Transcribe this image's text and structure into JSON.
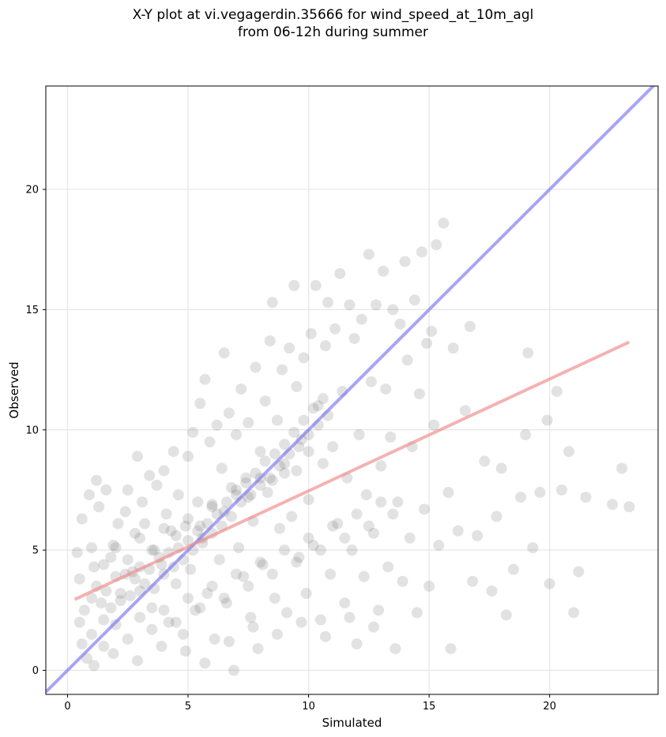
{
  "chart_data": {
    "type": "scatter",
    "title": "X-Y plot at vi.vegagerdin.35666 for wind_speed_at_10m_agl",
    "subtitle": "from 06-12h during summer",
    "xlabel": "Simulated",
    "ylabel": "Observed",
    "xlim": [
      -0.9,
      24.5
    ],
    "ylim": [
      -1.0,
      24.3
    ],
    "xticks": [
      0,
      5,
      10,
      15,
      20
    ],
    "yticks": [
      0,
      5,
      10,
      15,
      20
    ],
    "grid": true,
    "point_color": "#555555",
    "identity_line": {
      "color": "#7777ee",
      "points": [
        [
          -0.9,
          -0.9
        ],
        [
          24.5,
          24.5
        ]
      ]
    },
    "fit_line": {
      "color": "#ee8888",
      "points": [
        [
          0.3,
          2.95
        ],
        [
          23.3,
          13.65
        ]
      ]
    },
    "points": [
      [
        0.4,
        4.9
      ],
      [
        0.5,
        3.8
      ],
      [
        0.6,
        6.3
      ],
      [
        0.7,
        2.5
      ],
      [
        0.9,
        7.3
      ],
      [
        1.0,
        5.1
      ],
      [
        1.1,
        4.3
      ],
      [
        1.2,
        7.9
      ],
      [
        1.3,
        6.8
      ],
      [
        1.5,
        2.1
      ],
      [
        1.6,
        7.5
      ],
      [
        1.8,
        4.7
      ],
      [
        1.9,
        5.2
      ],
      [
        2.1,
        6.1
      ],
      [
        2.2,
        2.9
      ],
      [
        2.4,
        6.6
      ],
      [
        2.5,
        7.5
      ],
      [
        2.7,
        4.1
      ],
      [
        2.8,
        5.7
      ],
      [
        2.9,
        8.9
      ],
      [
        3.0,
        3.3
      ],
      [
        3.1,
        7.0
      ],
      [
        3.2,
        6.1
      ],
      [
        3.4,
        8.1
      ],
      [
        3.5,
        2.6
      ],
      [
        3.6,
        5.0
      ],
      [
        3.7,
        7.7
      ],
      [
        3.9,
        4.4
      ],
      [
        4.0,
        8.3
      ],
      [
        4.1,
        6.5
      ],
      [
        4.2,
        2.0
      ],
      [
        4.3,
        5.8
      ],
      [
        4.4,
        9.1
      ],
      [
        4.5,
        3.6
      ],
      [
        4.6,
        7.3
      ],
      [
        4.8,
        1.5
      ],
      [
        4.9,
        6.0
      ],
      [
        5.0,
        8.9
      ],
      [
        5.1,
        4.2
      ],
      [
        5.2,
        9.9
      ],
      [
        5.3,
        2.5
      ],
      [
        5.4,
        7.0
      ],
      [
        5.5,
        11.1
      ],
      [
        5.6,
        5.5
      ],
      [
        5.7,
        12.1
      ],
      [
        5.8,
        3.2
      ],
      [
        5.9,
        9.5
      ],
      [
        6.0,
        6.8
      ],
      [
        6.1,
        1.3
      ],
      [
        6.2,
        10.2
      ],
      [
        6.3,
        4.6
      ],
      [
        6.4,
        8.4
      ],
      [
        6.5,
        13.2
      ],
      [
        6.6,
        2.8
      ],
      [
        6.7,
        10.7
      ],
      [
        6.8,
        7.6
      ],
      [
        6.9,
        0.0
      ],
      [
        7.0,
        9.8
      ],
      [
        7.1,
        5.1
      ],
      [
        7.2,
        11.7
      ],
      [
        7.3,
        3.9
      ],
      [
        7.4,
        8.0
      ],
      [
        7.5,
        10.3
      ],
      [
        7.6,
        2.2
      ],
      [
        7.7,
        6.2
      ],
      [
        7.8,
        12.6
      ],
      [
        7.9,
        0.9
      ],
      [
        8.0,
        9.1
      ],
      [
        8.1,
        4.4
      ],
      [
        8.2,
        11.2
      ],
      [
        8.3,
        7.4
      ],
      [
        8.4,
        13.7
      ],
      [
        8.5,
        15.3
      ],
      [
        8.6,
        3.0
      ],
      [
        8.7,
        10.4
      ],
      [
        8.8,
        5.9
      ],
      [
        8.9,
        12.5
      ],
      [
        9.0,
        8.2
      ],
      [
        9.1,
        2.4
      ],
      [
        9.2,
        13.4
      ],
      [
        9.3,
        6.4
      ],
      [
        9.4,
        16.0
      ],
      [
        9.5,
        11.8
      ],
      [
        9.6,
        4.7
      ],
      [
        9.7,
        9.6
      ],
      [
        9.8,
        13.0
      ],
      [
        9.9,
        3.2
      ],
      [
        10.0,
        7.1
      ],
      [
        10.1,
        14.0
      ],
      [
        10.2,
        5.2
      ],
      [
        10.3,
        16.0
      ],
      [
        10.4,
        11.0
      ],
      [
        10.5,
        2.1
      ],
      [
        10.6,
        8.6
      ],
      [
        10.7,
        13.5
      ],
      [
        10.8,
        15.3
      ],
      [
        10.9,
        4.0
      ],
      [
        11.0,
        9.3
      ],
      [
        11.1,
        14.2
      ],
      [
        11.2,
        6.1
      ],
      [
        11.3,
        16.5
      ],
      [
        11.4,
        11.6
      ],
      [
        11.5,
        2.8
      ],
      [
        11.6,
        8.0
      ],
      [
        11.7,
        15.2
      ],
      [
        11.8,
        5.0
      ],
      [
        11.9,
        13.8
      ],
      [
        12.0,
        1.1
      ],
      [
        12.1,
        9.8
      ],
      [
        12.2,
        14.6
      ],
      [
        12.3,
        3.9
      ],
      [
        12.4,
        7.3
      ],
      [
        12.5,
        17.3
      ],
      [
        12.6,
        12.0
      ],
      [
        12.7,
        5.7
      ],
      [
        12.8,
        15.2
      ],
      [
        12.9,
        2.5
      ],
      [
        13.0,
        8.5
      ],
      [
        13.1,
        16.6
      ],
      [
        13.2,
        11.7
      ],
      [
        13.3,
        4.3
      ],
      [
        13.4,
        9.7
      ],
      [
        13.5,
        15.0
      ],
      [
        13.6,
        0.9
      ],
      [
        13.7,
        7.0
      ],
      [
        13.8,
        14.4
      ],
      [
        13.9,
        3.7
      ],
      [
        14.0,
        17.0
      ],
      [
        14.1,
        12.9
      ],
      [
        14.2,
        5.5
      ],
      [
        14.3,
        9.3
      ],
      [
        14.4,
        15.4
      ],
      [
        14.5,
        2.4
      ],
      [
        14.6,
        11.5
      ],
      [
        14.7,
        17.4
      ],
      [
        14.8,
        6.7
      ],
      [
        14.9,
        13.6
      ],
      [
        15.0,
        3.5
      ],
      [
        15.1,
        14.1
      ],
      [
        15.2,
        10.2
      ],
      [
        15.3,
        17.7
      ],
      [
        15.4,
        5.2
      ],
      [
        15.6,
        18.6
      ],
      [
        15.8,
        7.4
      ],
      [
        15.9,
        0.9
      ],
      [
        16.0,
        13.4
      ],
      [
        16.2,
        5.8
      ],
      [
        16.5,
        10.8
      ],
      [
        16.7,
        14.3
      ],
      [
        16.8,
        3.7
      ],
      [
        17.0,
        5.6
      ],
      [
        17.3,
        8.7
      ],
      [
        17.6,
        3.3
      ],
      [
        17.8,
        6.4
      ],
      [
        18.0,
        8.4
      ],
      [
        18.2,
        2.3
      ],
      [
        18.5,
        4.2
      ],
      [
        18.8,
        7.2
      ],
      [
        19.0,
        9.8
      ],
      [
        19.1,
        13.2
      ],
      [
        19.3,
        5.1
      ],
      [
        19.6,
        7.4
      ],
      [
        19.9,
        10.4
      ],
      [
        20.0,
        3.6
      ],
      [
        20.3,
        11.6
      ],
      [
        20.5,
        7.5
      ],
      [
        20.8,
        9.1
      ],
      [
        21.0,
        2.4
      ],
      [
        21.2,
        4.1
      ],
      [
        21.5,
        7.2
      ],
      [
        22.6,
        6.9
      ],
      [
        23.0,
        8.4
      ],
      [
        23.3,
        6.8
      ],
      [
        1.0,
        3.0
      ],
      [
        1.2,
        3.5
      ],
      [
        1.4,
        2.8
      ],
      [
        1.6,
        3.3
      ],
      [
        1.8,
        2.6
      ],
      [
        2.0,
        3.9
      ],
      [
        2.2,
        3.2
      ],
      [
        2.4,
        4.0
      ],
      [
        2.6,
        3.1
      ],
      [
        2.8,
        3.8
      ],
      [
        3.0,
        4.3
      ],
      [
        3.2,
        3.6
      ],
      [
        3.4,
        4.2
      ],
      [
        3.6,
        3.4
      ],
      [
        3.8,
        4.7
      ],
      [
        4.0,
        4.0
      ],
      [
        4.2,
        4.9
      ],
      [
        4.4,
        4.3
      ],
      [
        4.6,
        5.1
      ],
      [
        4.8,
        4.6
      ],
      [
        5.0,
        5.4
      ],
      [
        5.2,
        5.0
      ],
      [
        5.4,
        5.8
      ],
      [
        5.6,
        5.3
      ],
      [
        5.8,
        6.1
      ],
      [
        6.0,
        5.7
      ],
      [
        6.2,
        6.5
      ],
      [
        6.4,
        6.0
      ],
      [
        6.6,
        7.0
      ],
      [
        6.8,
        6.4
      ],
      [
        7.0,
        7.3
      ],
      [
        7.2,
        7.0
      ],
      [
        7.4,
        7.8
      ],
      [
        7.6,
        7.3
      ],
      [
        7.8,
        8.2
      ],
      [
        8.0,
        7.7
      ],
      [
        8.2,
        8.7
      ],
      [
        8.4,
        8.0
      ],
      [
        8.6,
        9.0
      ],
      [
        8.8,
        8.5
      ],
      [
        9.0,
        9.4
      ],
      [
        9.2,
        9.0
      ],
      [
        9.4,
        9.9
      ],
      [
        9.6,
        9.3
      ],
      [
        9.8,
        10.4
      ],
      [
        10.0,
        9.8
      ],
      [
        10.2,
        10.9
      ],
      [
        10.4,
        10.2
      ],
      [
        10.6,
        11.3
      ],
      [
        10.8,
        10.6
      ],
      [
        1.5,
        4.4
      ],
      [
        2.0,
        5.1
      ],
      [
        2.5,
        4.6
      ],
      [
        3.0,
        5.5
      ],
      [
        3.5,
        5.0
      ],
      [
        4.0,
        5.9
      ],
      [
        4.5,
        5.6
      ],
      [
        5.0,
        6.3
      ],
      [
        5.5,
        6.0
      ],
      [
        6.0,
        6.9
      ],
      [
        6.5,
        6.6
      ],
      [
        7.0,
        7.5
      ],
      [
        7.5,
        7.2
      ],
      [
        8.0,
        8.0
      ],
      [
        8.5,
        7.9
      ],
      [
        9.0,
        8.6
      ],
      [
        9.5,
        8.3
      ],
      [
        10.0,
        9.1
      ],
      [
        1.0,
        1.5
      ],
      [
        1.5,
        1.0
      ],
      [
        2.0,
        1.9
      ],
      [
        2.5,
        1.3
      ],
      [
        3.0,
        2.2
      ],
      [
        3.5,
        1.7
      ],
      [
        4.0,
        2.5
      ],
      [
        4.5,
        2.0
      ],
      [
        5.0,
        3.0
      ],
      [
        5.5,
        2.6
      ],
      [
        6.0,
        3.5
      ],
      [
        6.5,
        3.0
      ],
      [
        7.0,
        4.0
      ],
      [
        7.5,
        3.5
      ],
      [
        8.0,
        4.5
      ],
      [
        8.5,
        4.0
      ],
      [
        9.0,
        5.0
      ],
      [
        9.5,
        4.5
      ],
      [
        10.0,
        5.5
      ],
      [
        10.5,
        5.0
      ],
      [
        11.0,
        6.0
      ],
      [
        11.5,
        5.5
      ],
      [
        12.0,
        6.5
      ],
      [
        12.5,
        6.0
      ],
      [
        13.0,
        7.0
      ],
      [
        13.5,
        6.5
      ],
      [
        0.5,
        2.0
      ],
      [
        0.6,
        1.1
      ],
      [
        0.8,
        0.5
      ],
      [
        1.1,
        0.2
      ],
      [
        1.9,
        0.7
      ],
      [
        2.9,
        0.4
      ],
      [
        3.9,
        1.0
      ],
      [
        4.9,
        0.8
      ],
      [
        5.7,
        0.3
      ],
      [
        6.7,
        1.2
      ],
      [
        7.7,
        1.8
      ],
      [
        8.7,
        1.5
      ],
      [
        9.7,
        2.0
      ],
      [
        10.7,
        1.4
      ],
      [
        11.7,
        2.2
      ],
      [
        12.7,
        1.8
      ]
    ]
  }
}
